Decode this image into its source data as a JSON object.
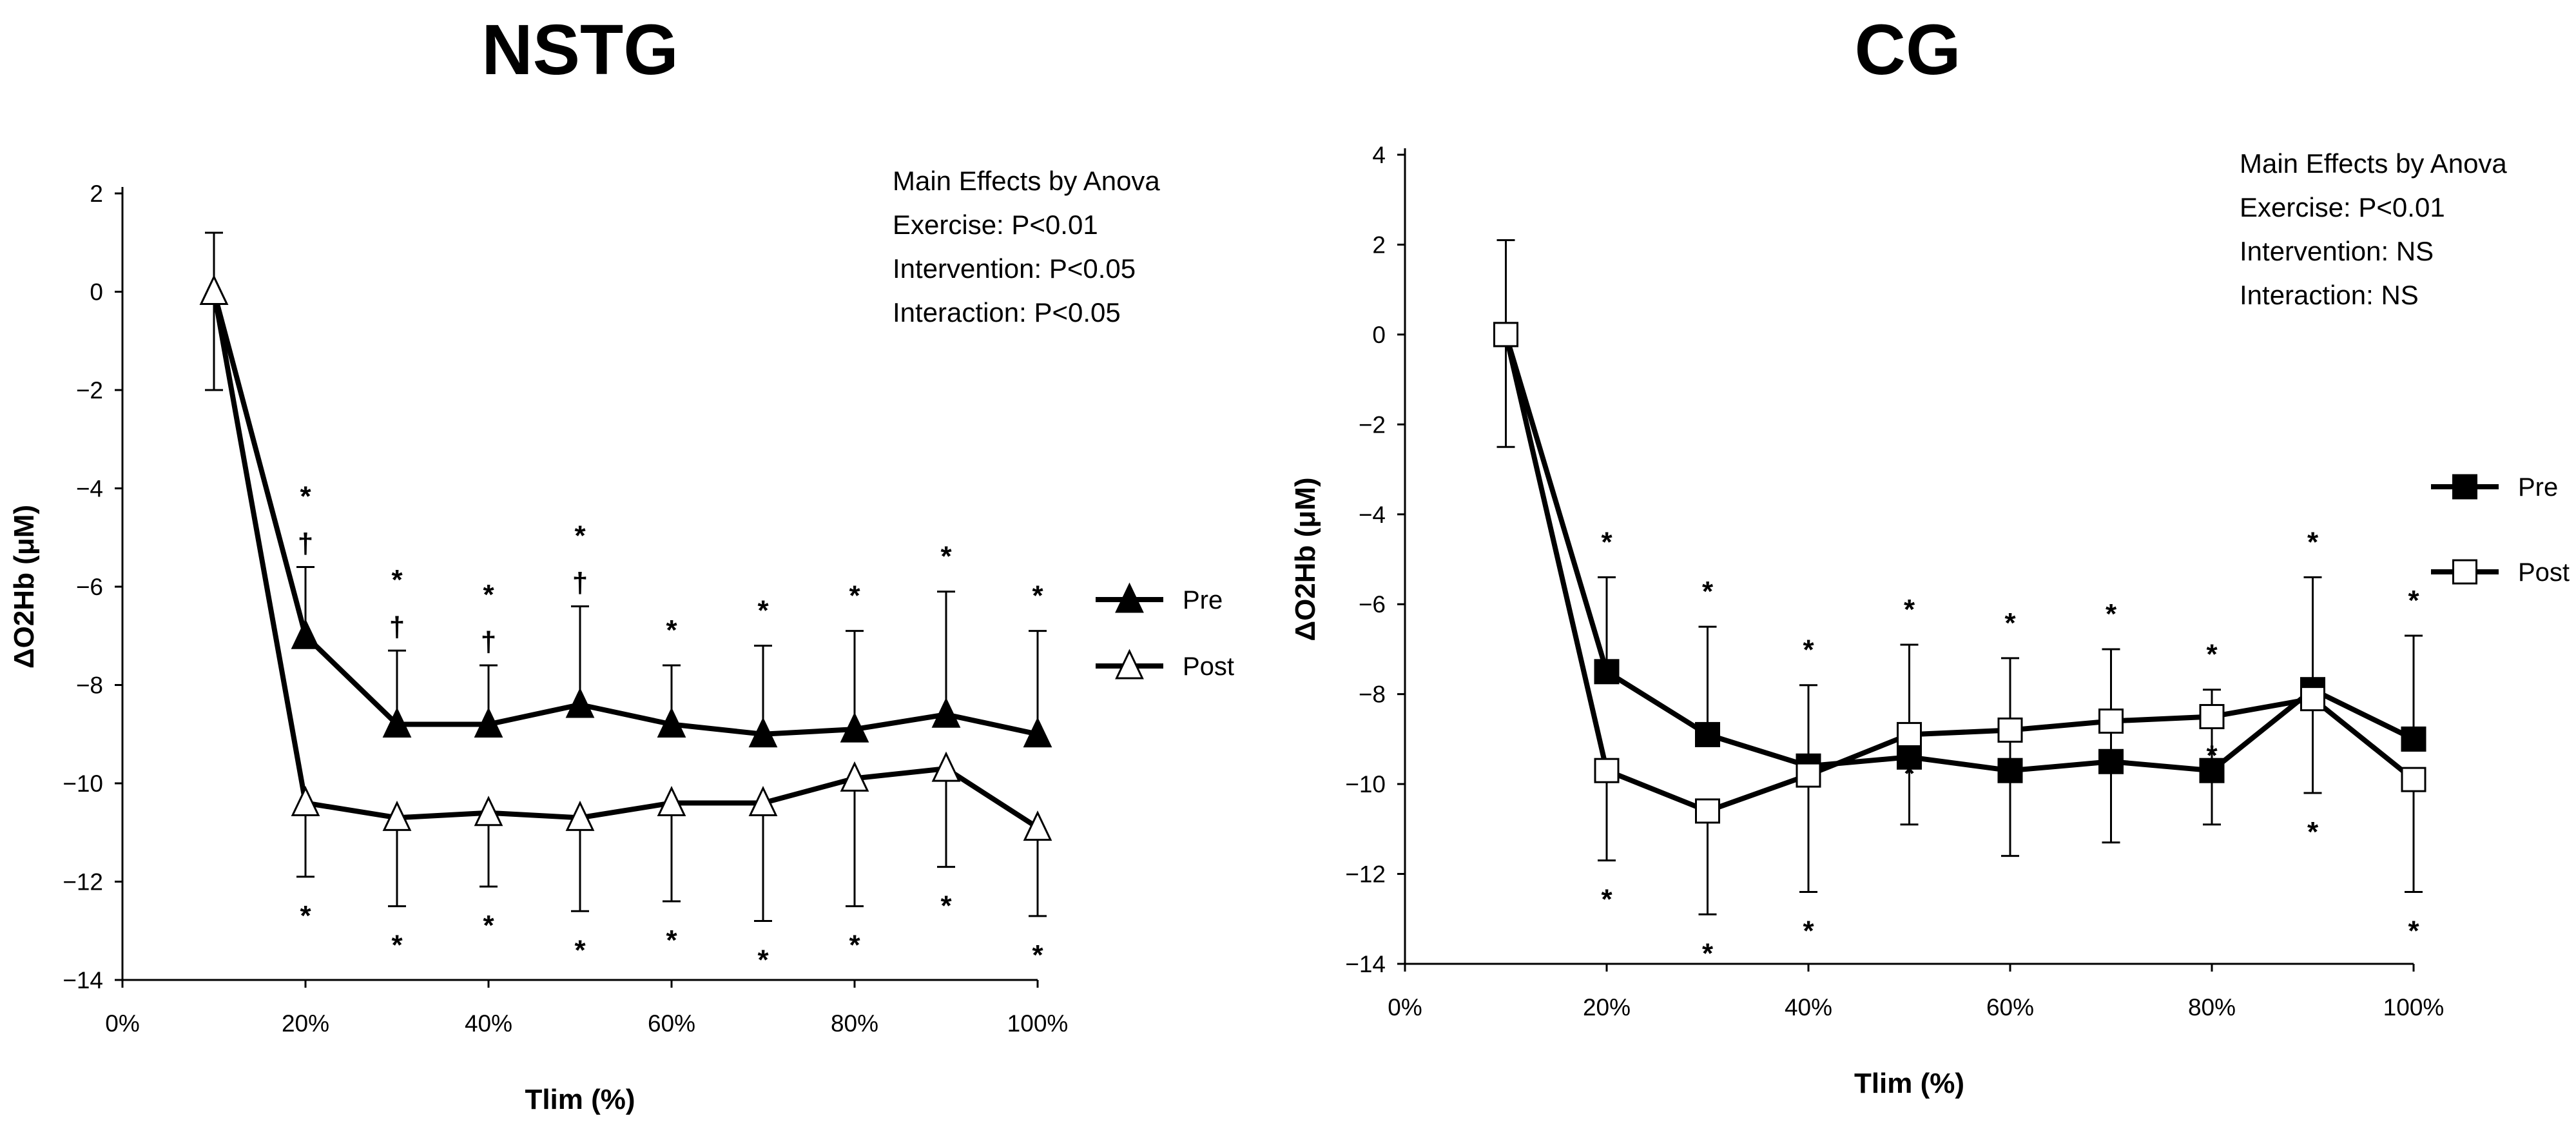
{
  "chart_data": [
    {
      "type": "line",
      "title": "NSTG",
      "xlabel": "Tlim (%)",
      "ylabel": "ΔO2Hb (μM)",
      "xlim": [
        0,
        100
      ],
      "ylim": [
        -14,
        2
      ],
      "xticks": [
        0,
        20,
        40,
        60,
        80,
        100
      ],
      "xtick_labels": [
        "0%",
        "20%",
        "40%",
        "60%",
        "80%",
        "100%"
      ],
      "yticks": [
        2,
        0,
        -2,
        -4,
        -6,
        -8,
        -10,
        -12,
        -14
      ],
      "ytick_labels": [
        "2",
        "0",
        "−2",
        "−4",
        "−6",
        "−8",
        "−10",
        "−12",
        "−14"
      ],
      "grid": false,
      "legend_position": "right",
      "annotation": [
        "Main Effects by Anova",
        "Exercise: P<0.01",
        "Intervention: P<0.05",
        "Interaction: P<0.05"
      ],
      "x": [
        10,
        20,
        30,
        40,
        50,
        60,
        70,
        80,
        90,
        100
      ],
      "series": [
        {
          "name": "Pre",
          "marker": "filled-triangle",
          "values": [
            0,
            -7.0,
            -8.8,
            -8.8,
            -8.4,
            -8.8,
            -9.0,
            -8.9,
            -8.6,
            -9.0
          ],
          "error_upper": [
            1.2,
            1.4,
            1.5,
            1.2,
            2.0,
            1.2,
            1.8,
            2.0,
            2.5,
            2.1
          ],
          "asterisk": [
            false,
            true,
            true,
            true,
            true,
            true,
            true,
            true,
            true,
            true
          ],
          "dagger": [
            false,
            true,
            true,
            true,
            true,
            false,
            false,
            false,
            false,
            false
          ]
        },
        {
          "name": "Post",
          "marker": "open-triangle",
          "values": [
            0,
            -10.4,
            -10.7,
            -10.6,
            -10.7,
            -10.4,
            -10.4,
            -9.9,
            -9.7,
            -10.9
          ],
          "error_lower": [
            2.0,
            1.5,
            1.8,
            1.5,
            1.9,
            2.0,
            2.4,
            2.6,
            2.0,
            1.8
          ],
          "asterisk": [
            false,
            true,
            true,
            true,
            true,
            true,
            true,
            true,
            true,
            true
          ]
        }
      ]
    },
    {
      "type": "line",
      "title": "CG",
      "xlabel": "Tlim (%)",
      "ylabel": "ΔO2Hb (μM)",
      "xlim": [
        0,
        100
      ],
      "ylim": [
        -14,
        4
      ],
      "xticks": [
        0,
        20,
        40,
        60,
        80,
        100
      ],
      "xtick_labels": [
        "0%",
        "20%",
        "40%",
        "60%",
        "80%",
        "100%"
      ],
      "yticks": [
        4,
        2,
        0,
        -2,
        -4,
        -6,
        -8,
        -10,
        -12,
        -14
      ],
      "ytick_labels": [
        "4",
        "2",
        "0",
        "−2",
        "−4",
        "−6",
        "−8",
        "−10",
        "−12",
        "−14"
      ],
      "grid": false,
      "legend_position": "right",
      "annotation": [
        "Main Effects by Anova",
        "Exercise: P<0.01",
        "Intervention: NS",
        "Interaction: NS"
      ],
      "x": [
        10,
        20,
        30,
        40,
        50,
        60,
        70,
        80,
        90,
        100
      ],
      "series": [
        {
          "name": "Pre",
          "marker": "filled-square",
          "values": [
            0,
            -7.5,
            -8.9,
            -9.6,
            -9.4,
            -9.7,
            -9.5,
            -9.7,
            -7.9,
            -9.0
          ],
          "error_upper": [
            2.1,
            2.1,
            2.4,
            1.8,
            2.5,
            2.5,
            2.5,
            1.8,
            2.5,
            2.3
          ],
          "error_lower": [
            2.5,
            0,
            0,
            0,
            1.5,
            1.9,
            1.8,
            1.2,
            0,
            0
          ],
          "asterisk": [
            false,
            true,
            true,
            true,
            true,
            true,
            true,
            true,
            true,
            true
          ]
        },
        {
          "name": "Post",
          "marker": "open-square",
          "values": [
            0,
            -9.7,
            -10.6,
            -9.8,
            -8.9,
            -8.8,
            -8.6,
            -8.5,
            -8.1,
            -9.9
          ],
          "error_upper": [
            0,
            0,
            0,
            0,
            0,
            0,
            0,
            0,
            0,
            0
          ],
          "error_lower": [
            0,
            2.0,
            2.3,
            2.6,
            0,
            0,
            0,
            0,
            2.1,
            2.5
          ],
          "asterisk": [
            false,
            true,
            true,
            true,
            true,
            true,
            true,
            true,
            true,
            true
          ]
        }
      ]
    }
  ]
}
